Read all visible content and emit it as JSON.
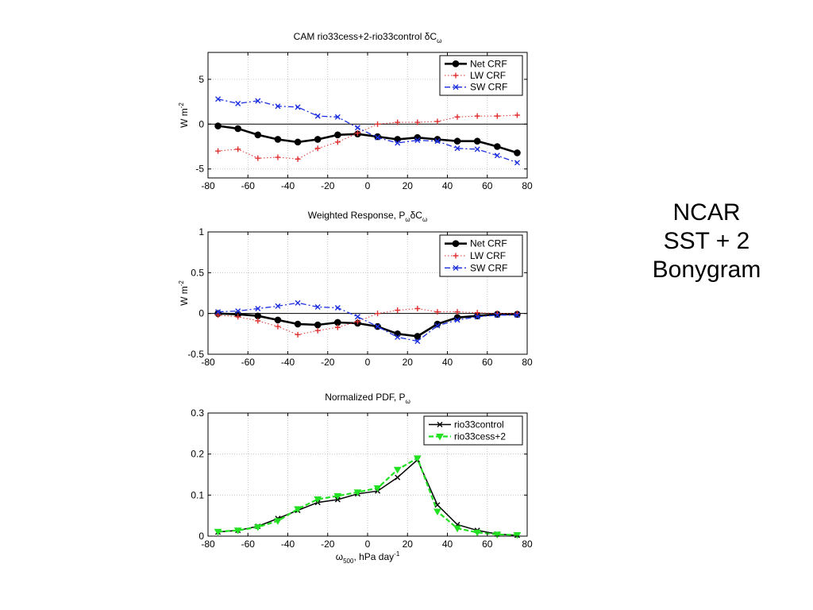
{
  "side_title": [
    "NCAR",
    "SST + 2",
    "Bonygram"
  ],
  "chart_data": [
    {
      "type": "line",
      "title": "CAM rio33cess+2-rio33control      δC",
      "title_subscript": "ω",
      "xlabel": "",
      "ylabel": "W m",
      "ylabel_sup": "-2",
      "xlim": [
        -80,
        80
      ],
      "ylim": [
        -6,
        8
      ],
      "xticks": [
        -80,
        -60,
        -40,
        -20,
        0,
        20,
        40,
        60,
        80
      ],
      "yticks": [
        -5,
        0,
        5
      ],
      "grid": true,
      "zero_line": true,
      "legend_position": "top-right",
      "x": [
        -75,
        -65,
        -55,
        -45,
        -35,
        -25,
        -15,
        -5,
        5,
        15,
        25,
        35,
        45,
        55,
        65,
        75
      ],
      "series": [
        {
          "name": "Net CRF",
          "color": "#000000",
          "style": "solid",
          "marker": "dot",
          "width": 2.6,
          "values": [
            -0.2,
            -0.5,
            -1.2,
            -1.7,
            -2.0,
            -1.7,
            -1.2,
            -1.1,
            -1.4,
            -1.7,
            -1.5,
            -1.7,
            -1.9,
            -1.9,
            -2.5,
            -3.2
          ]
        },
        {
          "name": "LW CRF",
          "color": "#e03030",
          "style": "dotted",
          "marker": "plus",
          "width": 1,
          "values": [
            -3.0,
            -2.8,
            -3.8,
            -3.7,
            -3.9,
            -2.7,
            -2.0,
            -1.0,
            0.0,
            0.2,
            0.2,
            0.3,
            0.8,
            0.9,
            0.9,
            1.0
          ]
        },
        {
          "name": "SW CRF",
          "color": "#1a2ee0",
          "style": "dashdot",
          "marker": "x",
          "width": 1.3,
          "values": [
            2.8,
            2.3,
            2.6,
            2.0,
            1.9,
            0.9,
            0.8,
            -0.4,
            -1.5,
            -2.1,
            -1.8,
            -1.9,
            -2.7,
            -2.8,
            -3.5,
            -4.3
          ]
        }
      ]
    },
    {
      "type": "line",
      "title": "Weighted Response,  P",
      "title_subscript": "ω",
      "title_suffix": "δC",
      "title_suffix_subscript": "ω",
      "xlabel": "",
      "ylabel": "W m",
      "ylabel_sup": "-2",
      "xlim": [
        -80,
        80
      ],
      "ylim": [
        -0.5,
        1
      ],
      "xticks": [
        -80,
        -60,
        -40,
        -20,
        0,
        20,
        40,
        60,
        80
      ],
      "yticks": [
        -0.5,
        0,
        0.5,
        1
      ],
      "grid": true,
      "zero_line": true,
      "legend_position": "top-right",
      "x": [
        -75,
        -65,
        -55,
        -45,
        -35,
        -25,
        -15,
        -5,
        5,
        15,
        25,
        35,
        45,
        55,
        65,
        75
      ],
      "series": [
        {
          "name": "Net CRF",
          "color": "#000000",
          "style": "solid",
          "marker": "dot",
          "width": 2.6,
          "values": [
            0.0,
            -0.01,
            -0.03,
            -0.08,
            -0.13,
            -0.14,
            -0.11,
            -0.12,
            -0.16,
            -0.25,
            -0.28,
            -0.13,
            -0.05,
            -0.03,
            -0.01,
            -0.01
          ]
        },
        {
          "name": "LW CRF",
          "color": "#e03030",
          "style": "dotted",
          "marker": "plus",
          "width": 1,
          "values": [
            -0.02,
            -0.04,
            -0.09,
            -0.16,
            -0.26,
            -0.21,
            -0.17,
            -0.1,
            0.0,
            0.04,
            0.06,
            0.02,
            0.02,
            0.01,
            0.0,
            0.0
          ]
        },
        {
          "name": "SW CRF",
          "color": "#1a2ee0",
          "style": "dashdot",
          "marker": "x",
          "width": 1.3,
          "values": [
            0.02,
            0.03,
            0.06,
            0.09,
            0.13,
            0.08,
            0.07,
            -0.04,
            -0.16,
            -0.29,
            -0.34,
            -0.15,
            -0.08,
            -0.04,
            -0.02,
            -0.02
          ]
        }
      ]
    },
    {
      "type": "line",
      "title": "Normalized PDF, P",
      "title_subscript": "ω",
      "xlabel": "ω",
      "xlabel_sub": "500",
      "xlabel_suffix": ", hPa day",
      "xlabel_sup": "-1",
      "ylabel": "",
      "xlim": [
        -80,
        80
      ],
      "ylim": [
        0,
        0.3
      ],
      "xticks": [
        -80,
        -60,
        -40,
        -20,
        0,
        20,
        40,
        60,
        80
      ],
      "yticks": [
        0,
        0.1,
        0.2,
        0.3
      ],
      "grid": true,
      "zero_line": false,
      "legend_position": "top-right",
      "x": [
        -75,
        -65,
        -55,
        -45,
        -35,
        -25,
        -15,
        -5,
        5,
        15,
        25,
        35,
        45,
        55,
        65,
        75
      ],
      "series": [
        {
          "name": "rio33control",
          "color": "#000000",
          "style": "solid",
          "marker": "x",
          "width": 1.5,
          "values": [
            0.01,
            0.014,
            0.024,
            0.043,
            0.063,
            0.082,
            0.089,
            0.103,
            0.11,
            0.143,
            0.186,
            0.076,
            0.028,
            0.014,
            0.005,
            0.002
          ]
        },
        {
          "name": "rio33cess+2",
          "color": "#22e022",
          "style": "dashed",
          "marker": "triangle-down",
          "width": 2.2,
          "values": [
            0.011,
            0.014,
            0.022,
            0.037,
            0.066,
            0.09,
            0.098,
            0.107,
            0.117,
            0.162,
            0.19,
            0.06,
            0.019,
            0.009,
            0.004,
            0.003
          ]
        }
      ]
    }
  ]
}
